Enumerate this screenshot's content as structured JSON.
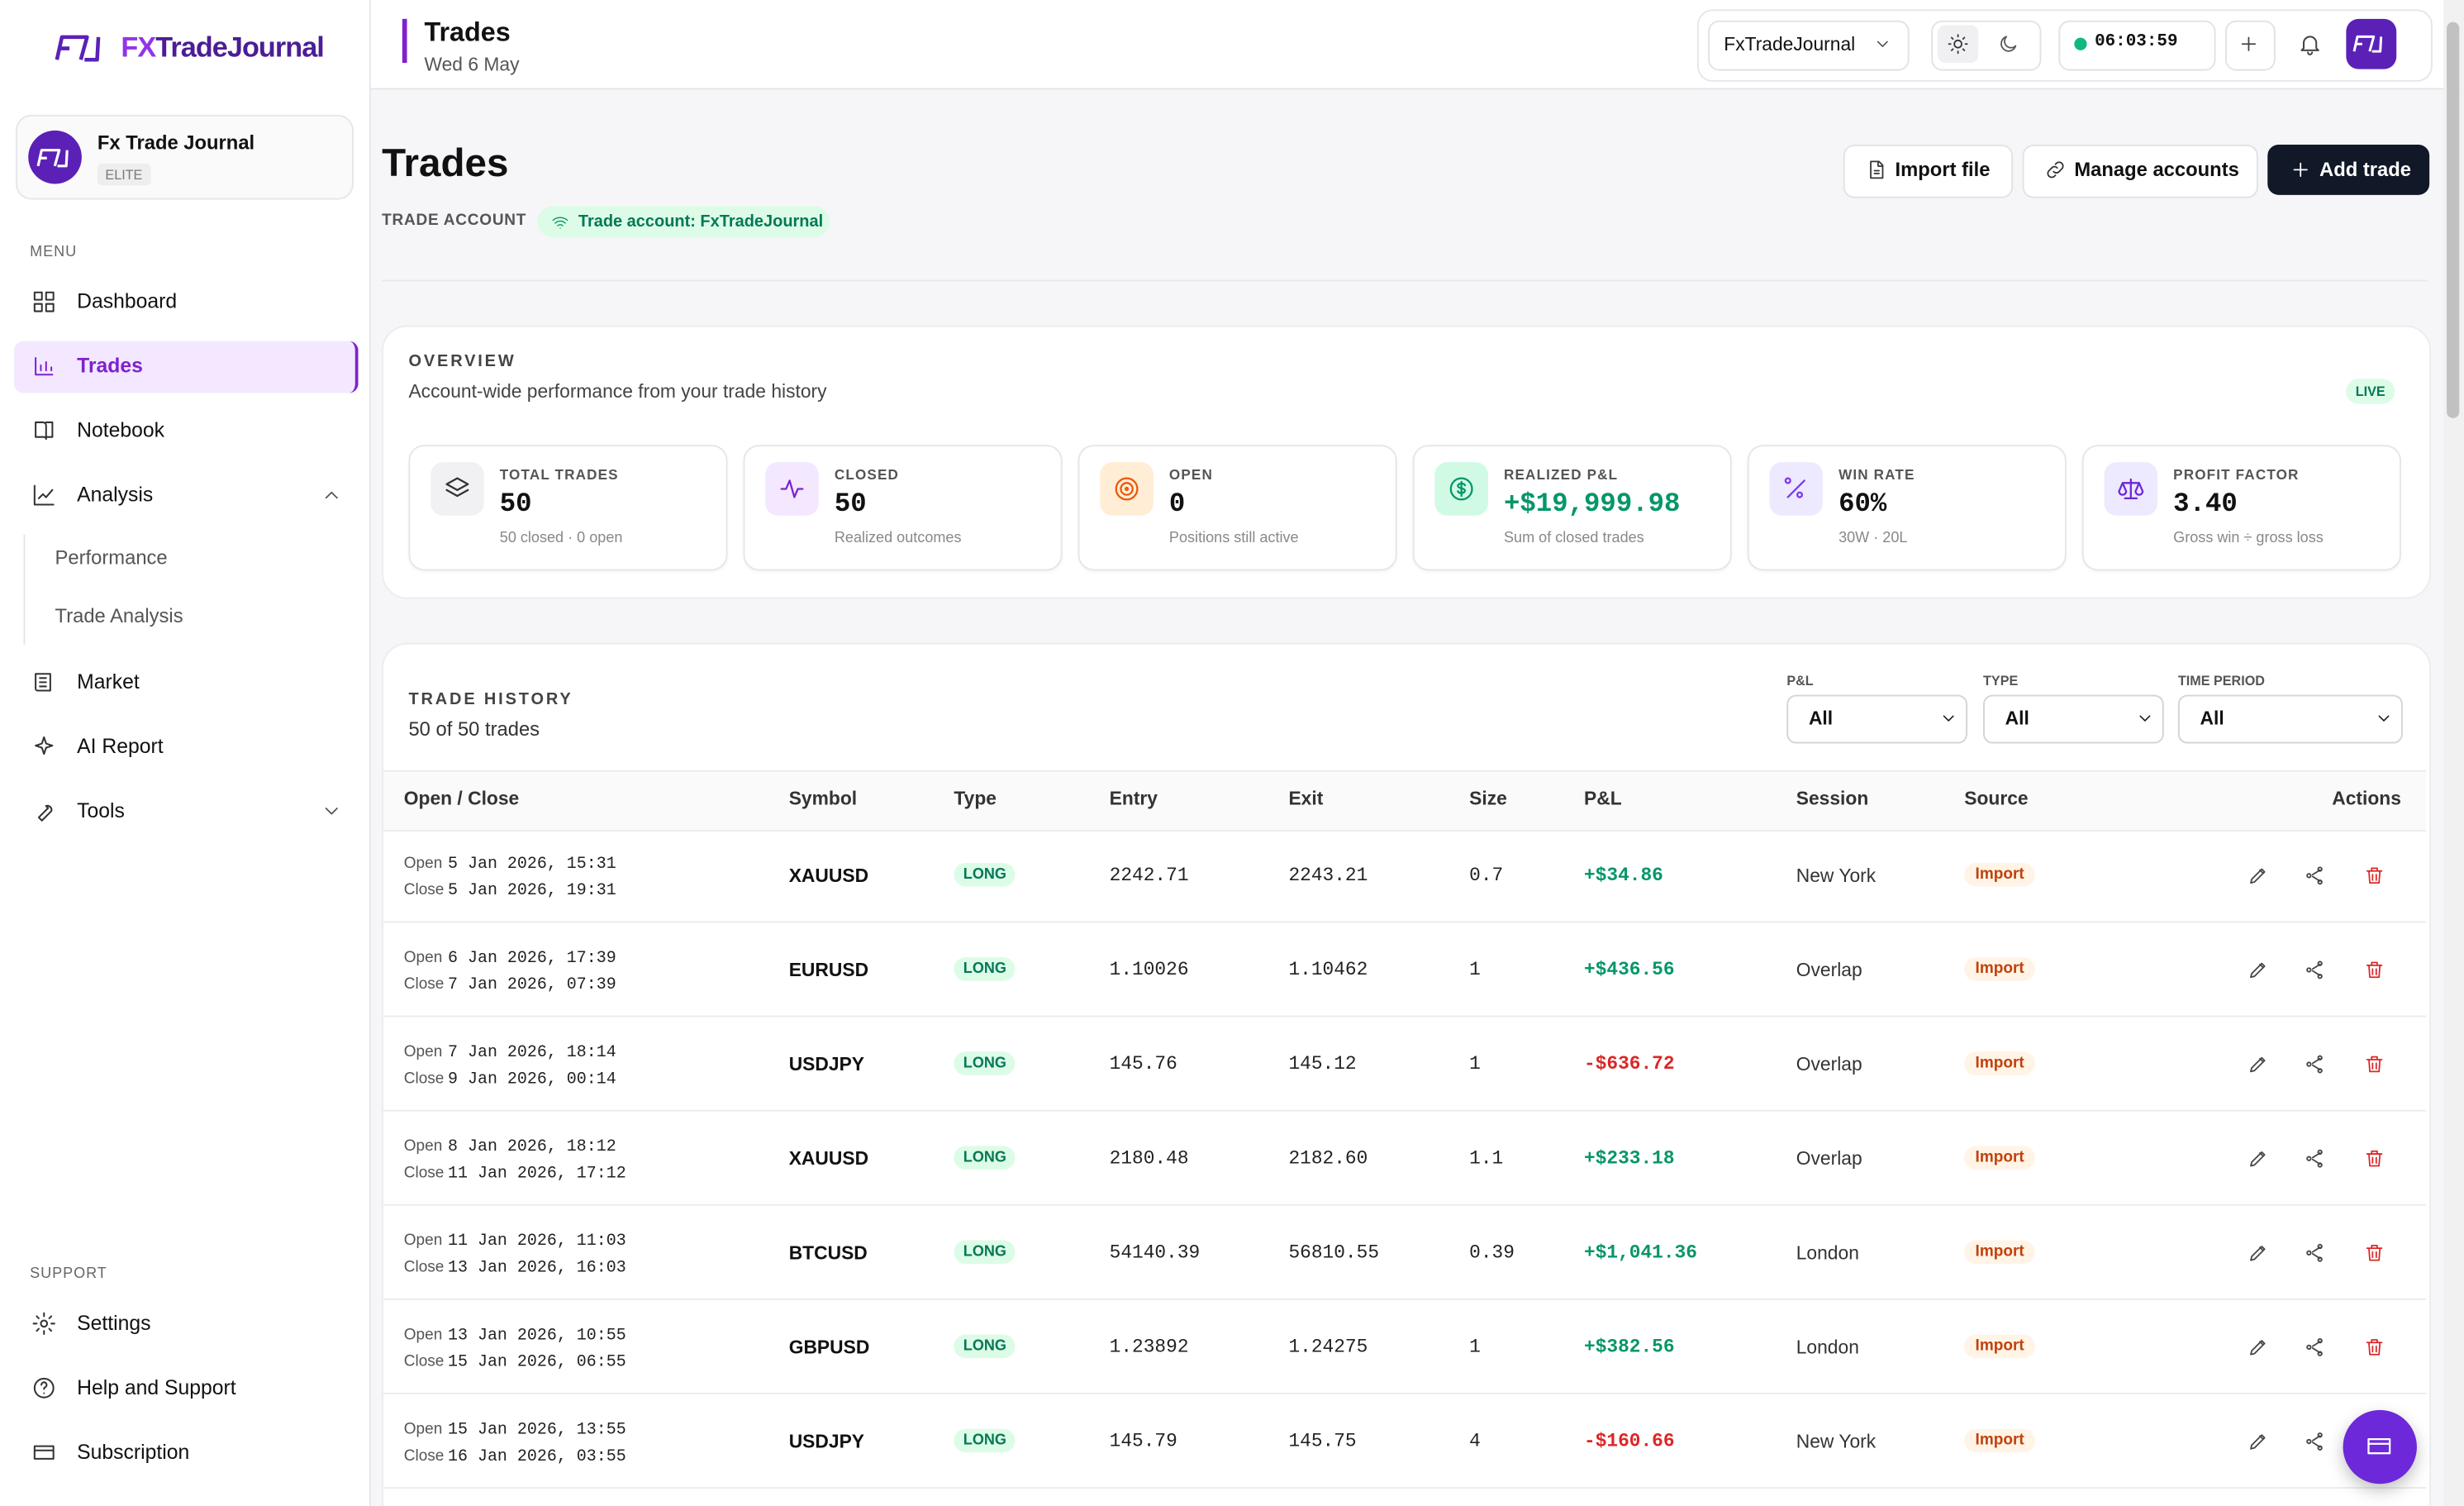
{
  "sidebar": {
    "brand_prefix": "FX",
    "brand_name": "TradeJournal",
    "account": {
      "name": "Fx Trade Journal",
      "plan": "ELITE"
    },
    "menu_label": "MENU",
    "menu": [
      "Dashboard",
      "Trades",
      "Notebook",
      "Analysis"
    ],
    "analysis_items": [
      "Performance",
      "Trade Analysis"
    ],
    "menu_more": [
      "Market",
      "AI Report",
      "Tools"
    ],
    "support_label": "SUPPORT",
    "support": [
      "Settings",
      "Help and Support",
      "Subscription"
    ]
  },
  "header": {
    "title": "Trades",
    "date": "Wed 6 May",
    "account_select": "FxTradeJournal",
    "timer": "06:03:59"
  },
  "page": {
    "title": "Trades",
    "account_label": "TRADE ACCOUNT",
    "account_badge": "Trade account: FxTradeJournal",
    "buttons": [
      "Import file",
      "Manage accounts",
      "Add trade"
    ]
  },
  "overview": {
    "title": "OVERVIEW",
    "subtitle": "Account-wide performance from your trade history",
    "badge": "LIVE",
    "cards": [
      {
        "label": "TOTAL TRADES",
        "value": "50",
        "note": "50 closed · 0 open"
      },
      {
        "label": "CLOSED",
        "value": "50",
        "note": "Realized outcomes"
      },
      {
        "label": "OPEN",
        "value": "0",
        "note": "Positions still active"
      },
      {
        "label": "REALIZED P&L",
        "value": "+$19,999.98",
        "note": "Sum of closed trades"
      },
      {
        "label": "WIN RATE",
        "value": "60%",
        "note": "30W · 20L"
      },
      {
        "label": "PROFIT FACTOR",
        "value": "3.40",
        "note": "Gross win ÷ gross loss"
      }
    ]
  },
  "history": {
    "title": "TRADE HISTORY",
    "count": "50 of 50 trades",
    "filters": [
      {
        "label": "P&L",
        "value": "All"
      },
      {
        "label": "TYPE",
        "value": "All"
      },
      {
        "label": "TIME PERIOD",
        "value": "All"
      }
    ],
    "columns": [
      "Open / Close",
      "Symbol",
      "Type",
      "Entry",
      "Exit",
      "Size",
      "P&L",
      "Session",
      "Source",
      "Actions"
    ],
    "open_label": "Open",
    "close_label": "Close",
    "rows": [
      {
        "open": "5 Jan 2026, 15:31",
        "close": "5 Jan 2026, 19:31",
        "symbol": "XAUUSD",
        "type": "LONG",
        "entry": "2242.71",
        "exit": "2243.21",
        "size": "0.7",
        "pnl": "+$34.86",
        "session": "New York",
        "source": "Import"
      },
      {
        "open": "6 Jan 2026, 17:39",
        "close": "7 Jan 2026, 07:39",
        "symbol": "EURUSD",
        "type": "LONG",
        "entry": "1.10026",
        "exit": "1.10462",
        "size": "1",
        "pnl": "+$436.56",
        "session": "Overlap",
        "source": "Import"
      },
      {
        "open": "7 Jan 2026, 18:14",
        "close": "9 Jan 2026, 00:14",
        "symbol": "USDJPY",
        "type": "LONG",
        "entry": "145.76",
        "exit": "145.12",
        "size": "1",
        "pnl": "-$636.72",
        "session": "Overlap",
        "source": "Import"
      },
      {
        "open": "8 Jan 2026, 18:12",
        "close": "11 Jan 2026, 17:12",
        "symbol": "XAUUSD",
        "type": "LONG",
        "entry": "2180.48",
        "exit": "2182.60",
        "size": "1.1",
        "pnl": "+$233.18",
        "session": "Overlap",
        "source": "Import"
      },
      {
        "open": "11 Jan 2026, 11:03",
        "close": "13 Jan 2026, 16:03",
        "symbol": "BTCUSD",
        "type": "LONG",
        "entry": "54140.39",
        "exit": "56810.55",
        "size": "0.39",
        "pnl": "+$1,041.36",
        "session": "London",
        "source": "Import"
      },
      {
        "open": "13 Jan 2026, 10:55",
        "close": "15 Jan 2026, 06:55",
        "symbol": "GBPUSD",
        "type": "LONG",
        "entry": "1.23892",
        "exit": "1.24275",
        "size": "1",
        "pnl": "+$382.56",
        "session": "London",
        "source": "Import"
      },
      {
        "open": "15 Jan 2026, 13:55",
        "close": "16 Jan 2026, 03:55",
        "symbol": "USDJPY",
        "type": "LONG",
        "entry": "145.79",
        "exit": "145.75",
        "size": "4",
        "pnl": "-$160.66",
        "session": "New York",
        "source": "Import"
      }
    ]
  }
}
